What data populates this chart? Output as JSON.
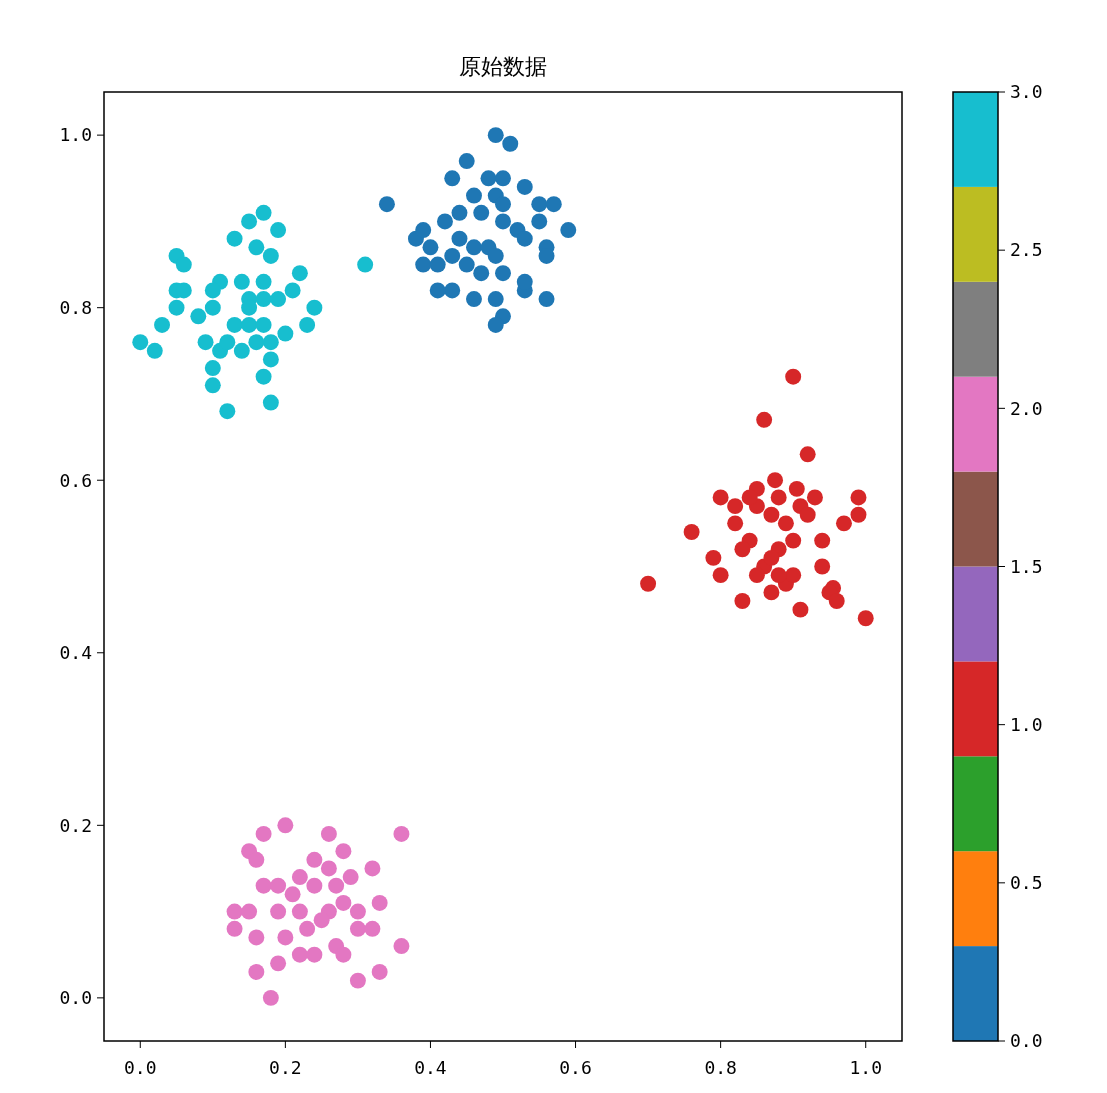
{
  "chart_data": {
    "type": "scatter",
    "title": "原始数据",
    "xlim": [
      -0.05,
      1.05
    ],
    "ylim": [
      -0.05,
      1.05
    ],
    "xticks": [
      {
        "value": 0,
        "label": "0.0"
      },
      {
        "value": 0.2,
        "label": "0.2"
      },
      {
        "value": 0.4,
        "label": "0.4"
      },
      {
        "value": 0.6,
        "label": "0.6"
      },
      {
        "value": 0.8,
        "label": "0.8"
      },
      {
        "value": 1,
        "label": "1.0"
      }
    ],
    "yticks": [
      {
        "value": 0,
        "label": "0.0"
      },
      {
        "value": 0.2,
        "label": "0.2"
      },
      {
        "value": 0.4,
        "label": "0.4"
      },
      {
        "value": 0.6,
        "label": "0.6"
      },
      {
        "value": 0.8,
        "label": "0.8"
      },
      {
        "value": 1,
        "label": "1.0"
      }
    ],
    "clim": [
      0,
      3
    ],
    "cticks": [
      {
        "value": 0,
        "label": "0.0"
      },
      {
        "value": 0.5,
        "label": "0.5"
      },
      {
        "value": 1,
        "label": "1.0"
      },
      {
        "value": 1.5,
        "label": "1.5"
      },
      {
        "value": 2,
        "label": "2.0"
      },
      {
        "value": 2.5,
        "label": "2.5"
      },
      {
        "value": 3,
        "label": "3.0"
      }
    ],
    "marker": "circle",
    "grid": false,
    "series": [
      {
        "x": [
          0.0,
          0.02,
          0.03,
          0.05,
          0.06,
          0.05,
          0.06,
          0.05,
          0.08,
          0.09,
          0.1,
          0.1,
          0.12,
          0.1,
          0.11,
          0.1,
          0.13,
          0.15,
          0.17,
          0.19,
          0.16,
          0.18,
          0.14,
          0.17,
          0.15,
          0.15,
          0.17,
          0.19,
          0.21,
          0.22,
          0.23,
          0.24,
          0.13,
          0.15,
          0.17,
          0.14,
          0.16,
          0.18,
          0.2,
          0.11,
          0.12,
          0.17,
          0.18,
          0.18,
          0.31
        ],
        "values": [
          0.76,
          0.75,
          0.78,
          0.86,
          0.85,
          0.82,
          0.82,
          0.8,
          0.79,
          0.76,
          0.73,
          0.71,
          0.68,
          0.8,
          0.83,
          0.82,
          0.88,
          0.9,
          0.91,
          0.89,
          0.87,
          0.86,
          0.83,
          0.83,
          0.81,
          0.8,
          0.81,
          0.81,
          0.82,
          0.84,
          0.78,
          0.8,
          0.78,
          0.78,
          0.78,
          0.75,
          0.76,
          0.76,
          0.77,
          0.75,
          0.76,
          0.72,
          0.74,
          0.69,
          0.85
        ],
        "cvalues": [
          3,
          3,
          3,
          3,
          3,
          3,
          3,
          3,
          3,
          3,
          3,
          3,
          3,
          3,
          3,
          3,
          3,
          3,
          3,
          3,
          3,
          3,
          3,
          3,
          3,
          3,
          3,
          3,
          3,
          3,
          3,
          3,
          3,
          3,
          3,
          3,
          3,
          3,
          3,
          3,
          3,
          3,
          3,
          3,
          3
        ]
      },
      {
        "x": [
          0.34,
          0.49,
          0.51,
          0.45,
          0.43,
          0.48,
          0.5,
          0.53,
          0.55,
          0.57,
          0.59,
          0.56,
          0.56,
          0.56,
          0.53,
          0.53,
          0.5,
          0.49,
          0.5,
          0.49,
          0.46,
          0.43,
          0.41,
          0.39,
          0.38,
          0.39,
          0.42,
          0.44,
          0.46,
          0.47,
          0.49,
          0.5,
          0.52,
          0.53,
          0.55,
          0.41,
          0.43,
          0.46,
          0.48,
          0.49,
          0.47,
          0.45,
          0.44,
          0.4,
          0.5
        ],
        "values": [
          0.92,
          1.0,
          0.99,
          0.97,
          0.95,
          0.95,
          0.95,
          0.94,
          0.92,
          0.92,
          0.89,
          0.87,
          0.86,
          0.81,
          0.82,
          0.83,
          0.84,
          0.81,
          0.79,
          0.78,
          0.81,
          0.82,
          0.82,
          0.85,
          0.88,
          0.89,
          0.9,
          0.91,
          0.93,
          0.91,
          0.93,
          0.9,
          0.89,
          0.88,
          0.9,
          0.85,
          0.86,
          0.87,
          0.87,
          0.86,
          0.84,
          0.85,
          0.88,
          0.87,
          0.92
        ],
        "cvalues": [
          0,
          0,
          0,
          0,
          0,
          0,
          0,
          0,
          0,
          0,
          0,
          0,
          0,
          0,
          0,
          0,
          0,
          0,
          0,
          0,
          0,
          0,
          0,
          0,
          0,
          0,
          0,
          0,
          0,
          0,
          0,
          0,
          0,
          0,
          0,
          0,
          0,
          0,
          0,
          0,
          0,
          0,
          0,
          0,
          0
        ]
      },
      {
        "x": [
          0.9,
          0.86,
          0.92,
          0.875,
          0.76,
          0.7,
          0.99,
          0.97,
          1.0,
          0.955,
          0.91,
          0.83,
          0.8,
          0.79,
          0.8,
          0.85,
          0.905,
          0.93,
          0.94,
          0.9,
          0.94,
          0.82,
          0.84,
          0.85,
          0.87,
          0.88,
          0.86,
          0.89,
          0.91,
          0.83,
          0.82,
          0.87,
          0.85,
          0.92,
          0.89,
          0.88,
          0.95,
          0.99,
          0.87,
          0.84,
          0.9,
          0.96,
          0.88
        ],
        "values": [
          0.72,
          0.67,
          0.63,
          0.6,
          0.54,
          0.48,
          0.58,
          0.55,
          0.44,
          0.475,
          0.45,
          0.46,
          0.49,
          0.51,
          0.58,
          0.59,
          0.59,
          0.58,
          0.53,
          0.53,
          0.5,
          0.55,
          0.53,
          0.57,
          0.56,
          0.52,
          0.5,
          0.48,
          0.57,
          0.52,
          0.57,
          0.47,
          0.49,
          0.56,
          0.55,
          0.58,
          0.47,
          0.56,
          0.51,
          0.58,
          0.49,
          0.46,
          0.49
        ],
        "cvalues": [
          1,
          1,
          1,
          1,
          1,
          1,
          1,
          1,
          1,
          1,
          1,
          1,
          1,
          1,
          1,
          1,
          1,
          1,
          1,
          1,
          1,
          1,
          1,
          1,
          1,
          1,
          1,
          1,
          1,
          1,
          1,
          1,
          1,
          1,
          1,
          1,
          1,
          1,
          1,
          1,
          1,
          1,
          1
        ]
      },
      {
        "x": [
          0.2,
          0.17,
          0.15,
          0.16,
          0.36,
          0.26,
          0.28,
          0.13,
          0.13,
          0.16,
          0.16,
          0.18,
          0.19,
          0.3,
          0.33,
          0.36,
          0.32,
          0.15,
          0.17,
          0.19,
          0.22,
          0.24,
          0.24,
          0.22,
          0.19,
          0.2,
          0.22,
          0.24,
          0.27,
          0.28,
          0.3,
          0.32,
          0.26,
          0.28,
          0.3,
          0.33,
          0.29,
          0.26,
          0.25,
          0.27,
          0.23,
          0.21
        ],
        "values": [
          0.2,
          0.19,
          0.17,
          0.16,
          0.19,
          0.19,
          0.17,
          0.1,
          0.08,
          0.07,
          0.03,
          0.0,
          0.04,
          0.02,
          0.03,
          0.06,
          0.15,
          0.1,
          0.13,
          0.13,
          0.14,
          0.16,
          0.13,
          0.1,
          0.1,
          0.07,
          0.05,
          0.05,
          0.06,
          0.05,
          0.08,
          0.08,
          0.1,
          0.11,
          0.1,
          0.11,
          0.14,
          0.15,
          0.09,
          0.13,
          0.08,
          0.12
        ],
        "cvalues": [
          2,
          2,
          2,
          2,
          2,
          2,
          2,
          2,
          2,
          2,
          2,
          2,
          2,
          2,
          2,
          2,
          2,
          2,
          2,
          2,
          2,
          2,
          2,
          2,
          2,
          2,
          2,
          2,
          2,
          2,
          2,
          2,
          2,
          2,
          2,
          2,
          2,
          2,
          2,
          2,
          2,
          2
        ]
      }
    ]
  }
}
